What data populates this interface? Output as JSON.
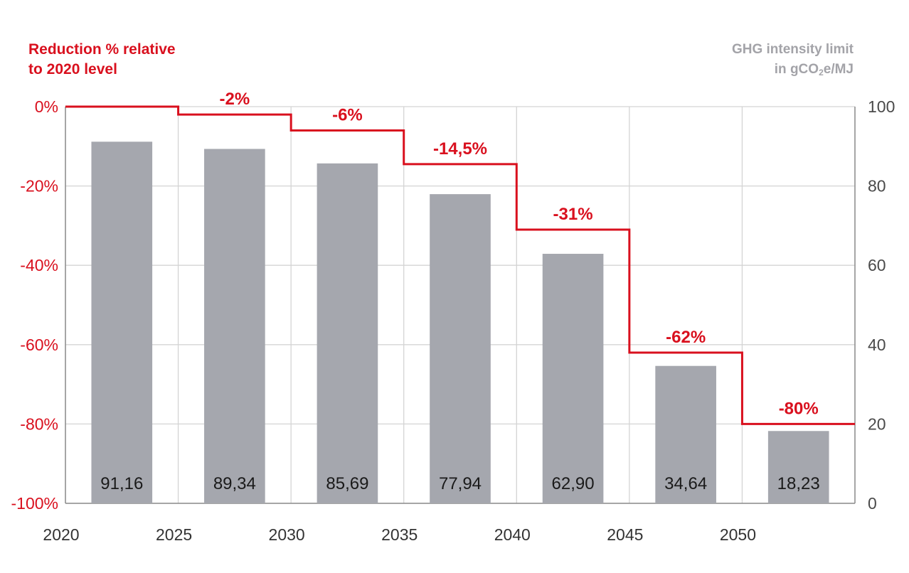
{
  "chart_data": {
    "type": "bar",
    "left_axis_title_line1": "Reduction % relative",
    "left_axis_title_line2": "to 2020 level",
    "right_axis_title_line1": "GHG intensity limit",
    "right_axis_title_line2_pre": "in gCO",
    "right_axis_title_line2_sub": "2",
    "right_axis_title_line2_post": "e/MJ",
    "x_ticks": [
      "2020",
      "2025",
      "2030",
      "2035",
      "2040",
      "2045",
      "2050"
    ],
    "left_ticks": [
      "0%",
      "-20%",
      "-40%",
      "-60%",
      "-80%",
      "-100%"
    ],
    "right_ticks": [
      "100",
      "80",
      "60",
      "40",
      "20",
      "0"
    ],
    "left_ylim": [
      -100,
      0
    ],
    "right_ylim": [
      0,
      100
    ],
    "grid": true,
    "bars": {
      "name": "GHG intensity limit",
      "values": [
        91.16,
        89.34,
        85.69,
        77.94,
        62.9,
        34.64,
        18.23
      ],
      "labels": [
        "91,16",
        "89,34",
        "85,69",
        "77,94",
        "62,90",
        "34,64",
        "18,23"
      ]
    },
    "reduction_steps": {
      "name": "Reduction % relative to 2020 level",
      "values": [
        0,
        -2,
        -6,
        -14.5,
        -31,
        -62,
        -80
      ],
      "labels": [
        "",
        "-2%",
        "-6%",
        "-14,5%",
        "-31%",
        "-62%",
        "-80%"
      ]
    },
    "colors": {
      "bar": "#a5a7ae",
      "line": "#d9101e",
      "grid": "#d4d4d4",
      "axis": "#8c8c8c"
    }
  }
}
